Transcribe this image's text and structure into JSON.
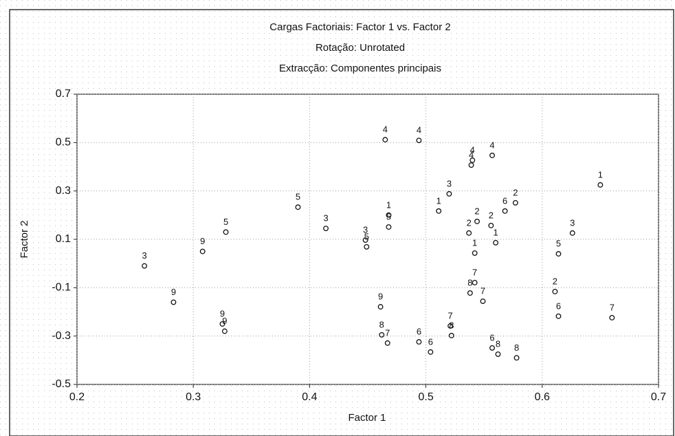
{
  "chart_data": {
    "type": "scatter",
    "title": "Cargas Factoriais: Factor 1 vs. Factor 2",
    "subtitle": [
      "Rotação: Unrotated",
      "Extracção: Componentes principais"
    ],
    "x_label": "Factor 1",
    "y_label": "Factor 2",
    "xlim": [
      0.2,
      0.7
    ],
    "ylim": [
      -0.5,
      0.7
    ],
    "xticks": [
      0.2,
      0.3,
      0.4,
      0.5,
      0.6,
      0.7
    ],
    "yticks": [
      -0.5,
      -0.3,
      -0.1,
      0.1,
      0.3,
      0.5,
      0.7
    ],
    "grid": true,
    "color": "#111111",
    "x": [
      0.258,
      0.283,
      0.308,
      0.328,
      0.325,
      0.327,
      0.39,
      0.414,
      0.448,
      0.449,
      0.468,
      0.468,
      0.465,
      0.494,
      0.511,
      0.52,
      0.539,
      0.54,
      0.557,
      0.544,
      0.537,
      0.556,
      0.568,
      0.577,
      0.542,
      0.56,
      0.65,
      0.626,
      0.614,
      0.611,
      0.614,
      0.66,
      0.542,
      0.538,
      0.549,
      0.461,
      0.462,
      0.467,
      0.494,
      0.504,
      0.521,
      0.522,
      0.557,
      0.562,
      0.578
    ],
    "y": [
      -0.01,
      -0.16,
      0.05,
      0.13,
      -0.25,
      -0.28,
      0.233,
      0.145,
      0.097,
      0.069,
      0.2,
      0.151,
      0.512,
      0.509,
      0.217,
      0.288,
      0.407,
      0.427,
      0.447,
      0.174,
      0.126,
      0.157,
      0.217,
      0.251,
      0.043,
      0.086,
      0.325,
      0.126,
      0.04,
      -0.116,
      -0.218,
      -0.224,
      -0.079,
      -0.122,
      -0.156,
      -0.179,
      -0.295,
      -0.329,
      -0.324,
      -0.366,
      -0.258,
      -0.298,
      -0.349,
      -0.375,
      -0.39
    ],
    "point_labels": [
      "3",
      "9",
      "9",
      "5",
      "9",
      "9",
      "5",
      "3",
      "3",
      "5",
      "1",
      "5",
      "4",
      "4",
      "1",
      "3",
      "4",
      "4",
      "4",
      "2",
      "2",
      "2",
      "6",
      "2",
      "1",
      "1",
      "1",
      "3",
      "5",
      "2",
      "6",
      "7",
      "7",
      "8",
      "7",
      "9",
      "8",
      "7",
      "6",
      "6",
      "7",
      "8",
      "6",
      "8",
      "8"
    ]
  }
}
